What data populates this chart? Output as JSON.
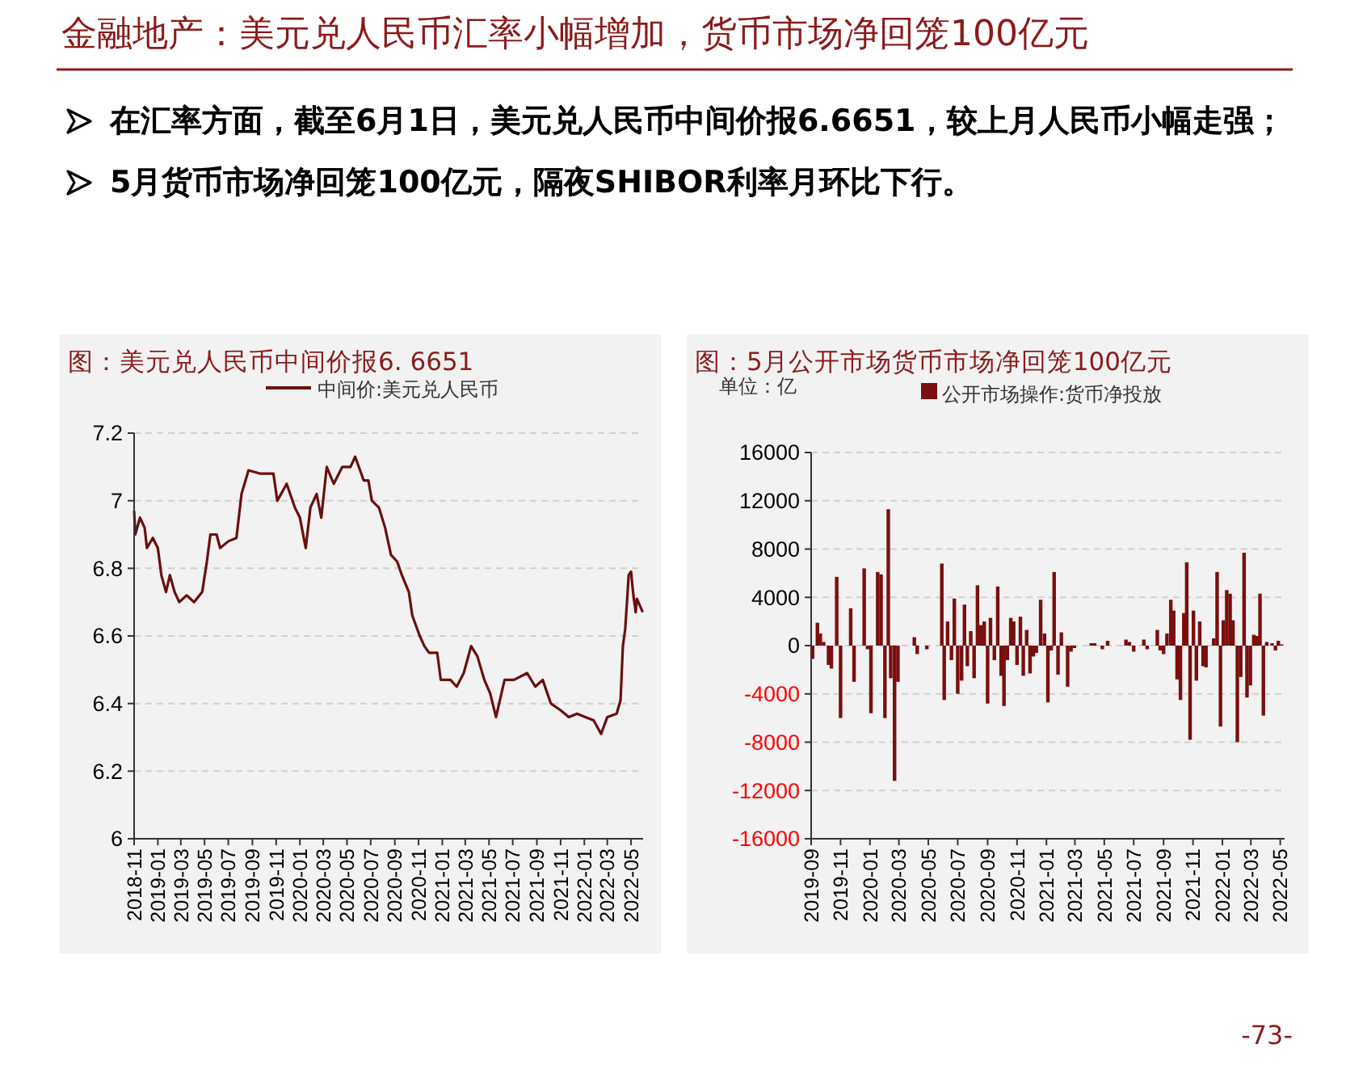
{
  "chart_data": [
    {
      "type": "other",
      "title": "金融地产：美元兑人民币汇率小幅增加，货币市场净回笼100亿元",
      "annotations": [
        "在汇率方面，截至6月1日，美元兑人民币中间价报6.6651，较上月人民币小幅走强；",
        "5月货币市场净回笼100亿元，隔夜SHIBOR利率月环比下行。",
        "-73-"
      ]
    },
    {
      "type": "line",
      "title": "图：美元兑人民币中间价报6. 6651",
      "legend": "top",
      "grid": "y",
      "xlim": [
        "2018-11-01",
        "2022-06-01"
      ],
      "ylim": [
        6,
        7.2
      ],
      "yticks": [
        6,
        6.2,
        6.4,
        6.6,
        6.8,
        7,
        7.2
      ],
      "xticks": [
        "2018-11",
        "2019-01",
        "2019-03",
        "2019-05",
        "2019-07",
        "2019-09",
        "2019-11",
        "2020-01",
        "2020-03",
        "2020-05",
        "2020-07",
        "2020-09",
        "2020-11",
        "2021-01",
        "2021-03",
        "2021-05",
        "2021-07",
        "2021-09",
        "2021-11",
        "2022-01",
        "2022-03",
        "2022-05"
      ],
      "x": [
        "2018-11-01",
        "2018-11-04",
        "2018-11-16",
        "2018-11-28",
        "2018-12-04",
        "2018-12-19",
        "2019-01-01",
        "2019-01-10",
        "2019-01-22",
        "2019-02-01",
        "2019-02-13",
        "2019-02-25",
        "2019-03-16",
        "2019-04-04",
        "2019-04-25",
        "2019-05-07",
        "2019-05-16",
        "2019-06-01",
        "2019-06-10",
        "2019-07-01",
        "2019-07-22",
        "2019-08-04",
        "2019-08-22",
        "2019-09-22",
        "2019-10-25",
        "2019-11-04",
        "2019-11-28",
        "2019-12-19",
        "2020-01-01",
        "2020-01-16",
        "2020-01-28",
        "2020-02-13",
        "2020-02-25",
        "2020-03-10",
        "2020-03-28",
        "2020-04-19",
        "2020-05-10",
        "2020-05-22",
        "2020-06-13",
        "2020-06-25",
        "2020-07-04",
        "2020-07-22",
        "2020-08-07",
        "2020-08-22",
        "2020-09-07",
        "2020-09-19",
        "2020-10-07",
        "2020-10-16",
        "2020-11-04",
        "2020-11-16",
        "2020-11-28",
        "2020-12-19",
        "2020-12-28",
        "2021-01-22",
        "2021-02-07",
        "2021-02-25",
        "2021-03-16",
        "2021-04-01",
        "2021-04-19",
        "2021-05-04",
        "2021-05-19",
        "2021-06-10",
        "2021-07-04",
        "2021-08-07",
        "2021-08-28",
        "2021-09-16",
        "2021-10-07",
        "2021-11-01",
        "2021-11-22",
        "2021-12-13",
        "2022-01-04",
        "2022-01-25",
        "2022-02-13",
        "2022-03-01",
        "2022-03-25",
        "2022-04-04",
        "2022-04-10",
        "2022-04-16",
        "2022-04-25",
        "2022-05-01",
        "2022-05-07",
        "2022-05-13",
        "2022-05-16",
        "2022-05-31"
      ],
      "series": [
        {
          "name": "中间价:美元兑人民币",
          "color": "#6b0f0f",
          "values": [
            6.97,
            6.9,
            6.95,
            6.92,
            6.86,
            6.89,
            6.86,
            6.78,
            6.73,
            6.78,
            6.73,
            6.7,
            6.72,
            6.7,
            6.73,
            6.82,
            6.9,
            6.9,
            6.86,
            6.88,
            6.89,
            7.02,
            7.09,
            7.08,
            7.08,
            7,
            7.05,
            6.98,
            6.95,
            6.86,
            6.98,
            7.02,
            6.95,
            7.1,
            7.05,
            7.1,
            7.1,
            7.13,
            7.06,
            7.06,
            7,
            6.98,
            6.92,
            6.84,
            6.82,
            6.78,
            6.73,
            6.66,
            6.6,
            6.57,
            6.55,
            6.55,
            6.47,
            6.47,
            6.45,
            6.49,
            6.57,
            6.54,
            6.47,
            6.43,
            6.36,
            6.47,
            6.47,
            6.49,
            6.45,
            6.47,
            6.4,
            6.38,
            6.36,
            6.37,
            6.36,
            6.35,
            6.31,
            6.36,
            6.37,
            6.41,
            6.57,
            6.62,
            6.78,
            6.79,
            6.72,
            6.67,
            6.71,
            6.67
          ]
        }
      ]
    },
    {
      "type": "bar",
      "title": "图：5月公开市场货币市场净回笼100亿元",
      "ylabel": "单位：亿",
      "legend": "top",
      "grid": "y",
      "xlim": [
        "2019-09-01",
        "2022-05-10"
      ],
      "ylim": [
        -16000,
        16000
      ],
      "yticks": [
        -16000,
        -12000,
        -8000,
        -4000,
        0,
        4000,
        8000,
        12000,
        16000
      ],
      "xticks": [
        "2019-09",
        "2019-11",
        "2020-01",
        "2020-03",
        "2020-05",
        "2020-07",
        "2020-09",
        "2020-11",
        "2021-01",
        "2021-03",
        "2021-05",
        "2021-07",
        "2021-09",
        "2021-11",
        "2022-01",
        "2022-03",
        "2022-05"
      ],
      "x": [
        "2019-09-04",
        "2019-09-14",
        "2019-09-20",
        "2019-09-27",
        "2019-10-07",
        "2019-10-13",
        "2019-10-24",
        "2019-11-01",
        "2019-11-22",
        "2019-11-29",
        "2019-12-20",
        "2019-12-27",
        "2020-01-03",
        "2020-01-17",
        "2020-01-24",
        "2020-02-01",
        "2020-02-08",
        "2020-02-13",
        "2020-02-21",
        "2020-02-28",
        "2020-04-02",
        "2020-04-08",
        "2020-04-28",
        "2020-05-29",
        "2020-06-03",
        "2020-06-10",
        "2020-06-18",
        "2020-06-24",
        "2020-07-01",
        "2020-07-09",
        "2020-07-15",
        "2020-07-21",
        "2020-07-28",
        "2020-08-04",
        "2020-08-11",
        "2020-08-18",
        "2020-08-25",
        "2020-09-01",
        "2020-09-07",
        "2020-09-15",
        "2020-09-22",
        "2020-09-29",
        "2020-10-05",
        "2020-10-12",
        "2020-10-19",
        "2020-10-25",
        "2020-11-01",
        "2020-11-08",
        "2020-11-14",
        "2020-11-21",
        "2020-11-28",
        "2020-12-05",
        "2020-12-11",
        "2020-12-20",
        "2020-12-28",
        "2021-01-04",
        "2021-01-11",
        "2021-01-17",
        "2021-01-25",
        "2021-02-01",
        "2021-02-14",
        "2021-02-21",
        "2021-02-28",
        "2021-04-04",
        "2021-04-11",
        "2021-04-27",
        "2021-05-08",
        "2021-06-15",
        "2021-06-22",
        "2021-07-01",
        "2021-07-22",
        "2021-07-29",
        "2021-08-19",
        "2021-08-25",
        "2021-09-01",
        "2021-09-08",
        "2021-09-16",
        "2021-09-22",
        "2021-09-29",
        "2021-10-06",
        "2021-10-13",
        "2021-10-19",
        "2021-10-26",
        "2021-11-02",
        "2021-11-08",
        "2021-11-15",
        "2021-11-22",
        "2021-11-28",
        "2021-12-14",
        "2021-12-21",
        "2021-12-28",
        "2022-01-03",
        "2022-01-10",
        "2022-01-17",
        "2022-01-23",
        "2022-02-01",
        "2022-02-08",
        "2022-02-15",
        "2022-02-21",
        "2022-02-28",
        "2022-03-07",
        "2022-03-14",
        "2022-03-20",
        "2022-03-27",
        "2022-04-03",
        "2022-04-14",
        "2022-04-21",
        "2022-04-27",
        "2022-05-04"
      ],
      "series": [
        {
          "name": "公开市场操作:货币净投放",
          "color": "#7a0f0f",
          "values": [
            -1100,
            1900,
            1000,
            300,
            -1600,
            -1900,
            5700,
            -6000,
            3100,
            -3000,
            6400,
            -300,
            -5600,
            6100,
            5900,
            -6000,
            11300,
            -2700,
            -11200,
            -3000,
            700,
            -700,
            -300,
            6800,
            -4500,
            2000,
            -1200,
            3900,
            -4000,
            -2900,
            3400,
            -1700,
            1200,
            -2700,
            5000,
            1700,
            2000,
            -4800,
            2300,
            -1200,
            4900,
            -2500,
            -5000,
            -1200,
            2300,
            2000,
            -1600,
            2400,
            -2500,
            1300,
            -2300,
            -900,
            -600,
            3800,
            1000,
            -4700,
            -400,
            6100,
            -2400,
            1100,
            -3400,
            -500,
            -200,
            200,
            200,
            -300,
            400,
            500,
            300,
            -500,
            500,
            -300,
            1300,
            -400,
            -700,
            1000,
            3800,
            2900,
            -2800,
            -4500,
            2700,
            6900,
            -7800,
            2900,
            -2900,
            2000,
            -1700,
            -1800,
            600,
            6100,
            -6700,
            2100,
            4600,
            4300,
            2100,
            -8000,
            -2600,
            7700,
            -4300,
            -3300,
            900,
            800,
            4300,
            -5800,
            300,
            200,
            -400,
            400,
            100
          ]
        }
      ]
    }
  ]
}
